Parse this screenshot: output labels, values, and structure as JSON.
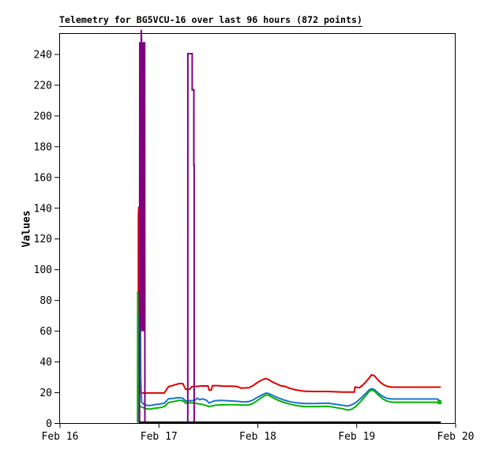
{
  "chart_data": {
    "type": "line",
    "title": "Telemetry for BG5VCU-16 over last 96 hours (872 points)",
    "ylabel": "Values",
    "xlabel": "",
    "background": "#ffffff",
    "axis_color": "#000000",
    "grid": false,
    "legend": null,
    "x_range_hours": [
      0,
      96
    ],
    "y_range": [
      0,
      253
    ],
    "x_ticks": [
      {
        "h": 0,
        "label": "Feb 16"
      },
      {
        "h": 24,
        "label": "Feb 17"
      },
      {
        "h": 48,
        "label": "Feb 18"
      },
      {
        "h": 72,
        "label": "Feb 19"
      },
      {
        "h": 96,
        "label": "Feb 20"
      }
    ],
    "y_ticks": [
      0,
      20,
      40,
      60,
      80,
      100,
      120,
      140,
      160,
      180,
      200,
      220,
      240
    ],
    "series": [
      {
        "name": "red",
        "color": "#dd0000",
        "width": 2,
        "points": [
          [
            19.0,
            0.5
          ],
          [
            19.02,
            135
          ],
          [
            19.1,
            141
          ],
          [
            19.25,
            133
          ],
          [
            19.4,
            136
          ],
          [
            19.45,
            20
          ],
          [
            19.7,
            19.8
          ],
          [
            25.3,
            19.8
          ],
          [
            26.3,
            23.9
          ],
          [
            27.5,
            24.8
          ],
          [
            28.9,
            25.9
          ],
          [
            29.8,
            25.9
          ],
          [
            30.5,
            22.2
          ],
          [
            31.4,
            22.2
          ],
          [
            32.0,
            23.9
          ],
          [
            33.3,
            24.2
          ],
          [
            34.8,
            24.4
          ],
          [
            35.9,
            24.4
          ],
          [
            36.2,
            21.7
          ],
          [
            36.7,
            21.7
          ],
          [
            37.0,
            24.6
          ],
          [
            38.5,
            24.6
          ],
          [
            39.5,
            24.3
          ],
          [
            41.5,
            24.3
          ],
          [
            42.9,
            24.1
          ],
          [
            43.9,
            23.0
          ],
          [
            45.8,
            23.2
          ],
          [
            46.8,
            24.5
          ],
          [
            47.8,
            26.5
          ],
          [
            48.9,
            28.2
          ],
          [
            49.9,
            29.2
          ],
          [
            50.7,
            28.4
          ],
          [
            51.5,
            27.0
          ],
          [
            52.5,
            25.8
          ],
          [
            53.6,
            24.5
          ],
          [
            54.5,
            24.2
          ],
          [
            55.8,
            22.8
          ],
          [
            57.2,
            21.8
          ],
          [
            59.2,
            21.0
          ],
          [
            61.5,
            20.8
          ],
          [
            65.0,
            20.8
          ],
          [
            68.6,
            20.4
          ],
          [
            71.4,
            20.4
          ],
          [
            71.6,
            23.7
          ],
          [
            72.6,
            23.2
          ],
          [
            73.4,
            24.8
          ],
          [
            74.2,
            27.0
          ],
          [
            75.0,
            29.5
          ],
          [
            75.6,
            31.6
          ],
          [
            76.3,
            31.0
          ],
          [
            77.0,
            28.8
          ],
          [
            77.8,
            26.6
          ],
          [
            78.8,
            24.8
          ],
          [
            79.7,
            23.9
          ],
          [
            80.6,
            23.6
          ],
          [
            92.4,
            23.6
          ]
        ]
      },
      {
        "name": "blue",
        "color": "#1a73cd",
        "width": 2,
        "points": [
          [
            18.92,
            0.5
          ],
          [
            18.95,
            70
          ],
          [
            19.05,
            60
          ],
          [
            19.15,
            68
          ],
          [
            19.3,
            62
          ],
          [
            19.45,
            100
          ],
          [
            19.6,
            30
          ],
          [
            19.8,
            14
          ],
          [
            20.3,
            12.5
          ],
          [
            21.0,
            11.8
          ],
          [
            21.8,
            11.6
          ],
          [
            23.0,
            12.2
          ],
          [
            24.5,
            12.8
          ],
          [
            25.3,
            13.2
          ],
          [
            26.3,
            16.0
          ],
          [
            27.5,
            16.4
          ],
          [
            28.9,
            16.8
          ],
          [
            29.8,
            16.4
          ],
          [
            30.5,
            14.6
          ],
          [
            31.5,
            14.8
          ],
          [
            32.7,
            15.0
          ],
          [
            33.3,
            16.5
          ],
          [
            33.9,
            15.4
          ],
          [
            34.5,
            16.0
          ],
          [
            35.5,
            15.2
          ],
          [
            36.2,
            13.3
          ],
          [
            37.5,
            14.8
          ],
          [
            39.0,
            15.0
          ],
          [
            41.0,
            14.7
          ],
          [
            42.9,
            14.4
          ],
          [
            44.5,
            14.0
          ],
          [
            45.8,
            14.2
          ],
          [
            46.8,
            15.2
          ],
          [
            47.8,
            16.8
          ],
          [
            48.9,
            18.4
          ],
          [
            50.0,
            19.8
          ],
          [
            50.7,
            19.4
          ],
          [
            51.8,
            18.0
          ],
          [
            53.0,
            16.6
          ],
          [
            54.4,
            15.2
          ],
          [
            56.0,
            14.0
          ],
          [
            57.5,
            13.4
          ],
          [
            59.2,
            13.0
          ],
          [
            62.0,
            13.0
          ],
          [
            65.0,
            13.2
          ],
          [
            68.6,
            11.8
          ],
          [
            69.8,
            11.3
          ],
          [
            70.7,
            12.0
          ],
          [
            71.8,
            13.6
          ],
          [
            73.0,
            16.5
          ],
          [
            74.2,
            19.5
          ],
          [
            75.0,
            21.8
          ],
          [
            75.6,
            22.6
          ],
          [
            76.3,
            22.0
          ],
          [
            77.2,
            19.8
          ],
          [
            78.2,
            17.8
          ],
          [
            79.3,
            16.4
          ],
          [
            80.5,
            15.9
          ],
          [
            91.6,
            15.9
          ],
          [
            92.2,
            14.6
          ]
        ]
      },
      {
        "name": "green",
        "color": "#00b300",
        "width": 2,
        "end_marker": true,
        "points": [
          [
            18.82,
            0.5
          ],
          [
            18.85,
            86
          ],
          [
            18.95,
            14
          ],
          [
            19.3,
            11.2
          ],
          [
            20.1,
            10.4
          ],
          [
            20.8,
            9.6
          ],
          [
            21.8,
            9.3
          ],
          [
            23.0,
            9.9
          ],
          [
            24.5,
            10.4
          ],
          [
            25.3,
            11.0
          ],
          [
            26.3,
            13.6
          ],
          [
            27.5,
            14.2
          ],
          [
            28.9,
            15.0
          ],
          [
            29.8,
            14.8
          ],
          [
            30.5,
            13.2
          ],
          [
            31.5,
            13.5
          ],
          [
            32.7,
            13.3
          ],
          [
            33.3,
            12.9
          ],
          [
            34.5,
            12.4
          ],
          [
            35.5,
            11.6
          ],
          [
            36.2,
            11.0
          ],
          [
            37.5,
            11.8
          ],
          [
            39.0,
            12.1
          ],
          [
            41.0,
            12.2
          ],
          [
            42.9,
            12.2
          ],
          [
            44.5,
            11.9
          ],
          [
            45.8,
            12.0
          ],
          [
            46.8,
            13.0
          ],
          [
            47.8,
            14.8
          ],
          [
            48.9,
            16.8
          ],
          [
            50.0,
            18.6
          ],
          [
            50.7,
            18.2
          ],
          [
            51.8,
            16.6
          ],
          [
            53.0,
            15.0
          ],
          [
            54.4,
            13.6
          ],
          [
            56.0,
            12.4
          ],
          [
            57.5,
            11.6
          ],
          [
            59.2,
            11.0
          ],
          [
            62.0,
            11.0
          ],
          [
            65.0,
            11.2
          ],
          [
            68.6,
            9.6
          ],
          [
            69.8,
            8.7
          ],
          [
            70.7,
            9.2
          ],
          [
            71.8,
            11.0
          ],
          [
            73.0,
            14.5
          ],
          [
            74.2,
            18.0
          ],
          [
            75.0,
            20.8
          ],
          [
            75.6,
            21.6
          ],
          [
            76.3,
            21.0
          ],
          [
            77.2,
            18.6
          ],
          [
            78.2,
            16.2
          ],
          [
            79.3,
            14.6
          ],
          [
            80.5,
            13.8
          ],
          [
            92.1,
            13.8
          ]
        ]
      },
      {
        "name": "purple",
        "color": "#800080",
        "width": 2,
        "points": [
          [
            19.3,
            0.5
          ],
          [
            19.35,
            248
          ],
          [
            19.45,
            60
          ],
          [
            19.55,
            248
          ],
          [
            19.65,
            62
          ],
          [
            19.72,
            256
          ],
          [
            19.8,
            248
          ],
          [
            19.9,
            60
          ],
          [
            20.0,
            248
          ],
          [
            20.1,
            62
          ],
          [
            20.2,
            248
          ],
          [
            20.3,
            60
          ],
          [
            20.4,
            248
          ],
          [
            20.5,
            62
          ],
          [
            20.55,
            248
          ],
          [
            20.6,
            0.5
          ],
          null,
          [
            31.0,
            0.5
          ],
          [
            31.02,
            240.5
          ],
          [
            32.08,
            240.5
          ],
          [
            32.08,
            217
          ],
          [
            32.48,
            217
          ],
          [
            32.48,
            168
          ],
          [
            32.55,
            168
          ],
          [
            32.55,
            0.5
          ]
        ]
      },
      {
        "name": "black",
        "color": "#000000",
        "width": 3,
        "points": [
          [
            19.16,
            0.5
          ],
          [
            92.4,
            0.5
          ]
        ]
      }
    ]
  }
}
